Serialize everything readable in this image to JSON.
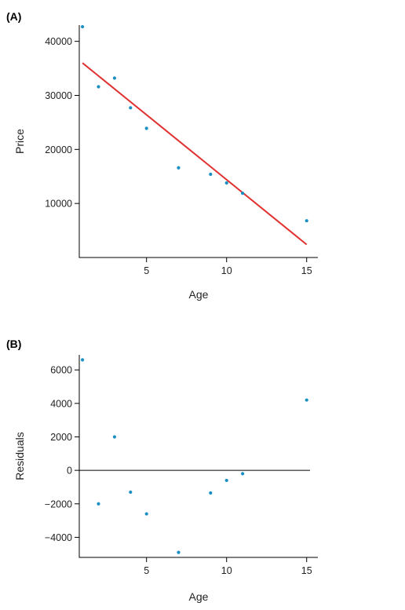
{
  "chart_data": [
    {
      "type": "scatter",
      "panel_label": "(A)",
      "xlabel": "Age",
      "ylabel": "Price",
      "xlim": [
        0.8,
        15.7
      ],
      "ylim": [
        0,
        43000
      ],
      "x_ticks": [
        5,
        10,
        15
      ],
      "y_ticks": [
        10000,
        20000,
        30000,
        40000
      ],
      "x_tick_labels": [
        "5",
        "10",
        "15"
      ],
      "y_tick_labels": [
        "10000",
        "20000",
        "30000",
        "40000"
      ],
      "points": [
        {
          "x": 1,
          "y": 42700
        },
        {
          "x": 2,
          "y": 31600
        },
        {
          "x": 3,
          "y": 33200
        },
        {
          "x": 4,
          "y": 27700
        },
        {
          "x": 5,
          "y": 23900
        },
        {
          "x": 7,
          "y": 16600
        },
        {
          "x": 9,
          "y": 15400
        },
        {
          "x": 10,
          "y": 13800
        },
        {
          "x": 11,
          "y": 11900
        },
        {
          "x": 15,
          "y": 6800
        }
      ],
      "fit_line": {
        "x": [
          1,
          15
        ],
        "y": [
          36000,
          2400
        ],
        "color": "#e03030"
      },
      "point_color": "#1a8fc4",
      "grid": false
    },
    {
      "type": "scatter",
      "panel_label": "(B)",
      "xlabel": "Age",
      "ylabel": "Residuals",
      "xlim": [
        0.8,
        15.7
      ],
      "ylim": [
        -5200,
        6900
      ],
      "x_ticks": [
        5,
        10,
        15
      ],
      "y_ticks": [
        -4000,
        -2000,
        0,
        2000,
        4000,
        6000
      ],
      "x_tick_labels": [
        "5",
        "10",
        "15"
      ],
      "y_tick_labels": [
        "−4000",
        "−2000",
        "0",
        "2000",
        "4000",
        "6000"
      ],
      "points": [
        {
          "x": 1,
          "y": 6600
        },
        {
          "x": 2,
          "y": -2000
        },
        {
          "x": 3,
          "y": 2000
        },
        {
          "x": 4,
          "y": -1300
        },
        {
          "x": 5,
          "y": -2600
        },
        {
          "x": 7,
          "y": -4900
        },
        {
          "x": 9,
          "y": -1350
        },
        {
          "x": 10,
          "y": -600
        },
        {
          "x": 11,
          "y": -200
        },
        {
          "x": 15,
          "y": 4200
        }
      ],
      "reference_line_y": 0,
      "point_color": "#1a8fc4",
      "grid": false
    }
  ]
}
